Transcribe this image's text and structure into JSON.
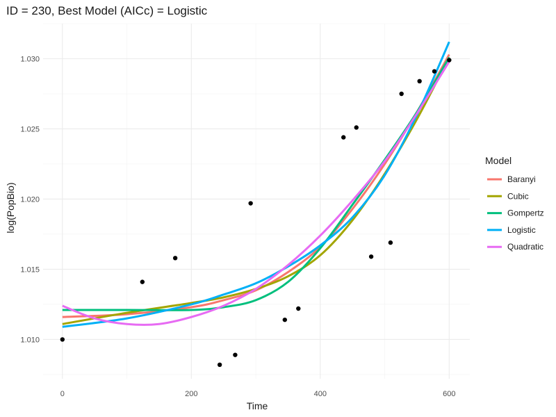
{
  "chart_data": {
    "type": "scatter",
    "title": "ID = 230, Best Model (AICc) = Logistic",
    "xlabel": "Time",
    "ylabel": "log(PopBio)",
    "xlim": [
      -30,
      632
    ],
    "ylim": [
      1.0072,
      1.0325
    ],
    "x_ticks": [
      0,
      200,
      400,
      600
    ],
    "y_ticks": [
      1.01,
      1.015,
      1.02,
      1.025,
      1.03
    ],
    "x_tick_labels": [
      "0",
      "200",
      "400",
      "600"
    ],
    "y_tick_labels": [
      "1.010",
      "1.015",
      "1.020",
      "1.025",
      "1.030"
    ],
    "grid": true,
    "legend_position": "right",
    "legend_title": "Model",
    "points": [
      {
        "x": 0,
        "y": 1.01
      },
      {
        "x": 124,
        "y": 1.0141
      },
      {
        "x": 175,
        "y": 1.0158
      },
      {
        "x": 244,
        "y": 1.0082
      },
      {
        "x": 268,
        "y": 1.0089
      },
      {
        "x": 292,
        "y": 1.0197
      },
      {
        "x": 345,
        "y": 1.0114
      },
      {
        "x": 366,
        "y": 1.0122
      },
      {
        "x": 436,
        "y": 1.0244
      },
      {
        "x": 456,
        "y": 1.0251
      },
      {
        "x": 479,
        "y": 1.0159
      },
      {
        "x": 509,
        "y": 1.0169
      },
      {
        "x": 526,
        "y": 1.0275
      },
      {
        "x": 554,
        "y": 1.0284
      },
      {
        "x": 577,
        "y": 1.0291
      },
      {
        "x": 600,
        "y": 1.0299
      }
    ],
    "series": [
      {
        "name": "Baranyi",
        "color": "#F8766D",
        "x": [
          0,
          100,
          200,
          250,
          300,
          350,
          400,
          450,
          500,
          550,
          600
        ],
        "y": [
          1.0116,
          1.0118,
          1.0123,
          1.0128,
          1.0135,
          1.0148,
          1.0166,
          1.0193,
          1.0225,
          1.0262,
          1.0303
        ]
      },
      {
        "name": "Cubic",
        "color": "#A3A500",
        "x": [
          0,
          100,
          200,
          250,
          300,
          350,
          400,
          450,
          500,
          550,
          600
        ],
        "y": [
          1.0111,
          1.0119,
          1.0126,
          1.013,
          1.0136,
          1.0145,
          1.016,
          1.0185,
          1.0218,
          1.0257,
          1.0301
        ]
      },
      {
        "name": "Gompertz",
        "color": "#00BF7D",
        "x": [
          0,
          100,
          200,
          250,
          300,
          350,
          400,
          450,
          500,
          550,
          600
        ],
        "y": [
          1.0121,
          1.0121,
          1.0121,
          1.0123,
          1.0128,
          1.0141,
          1.0165,
          1.0196,
          1.0228,
          1.0262,
          1.0301
        ]
      },
      {
        "name": "Logistic",
        "color": "#00B0F6",
        "x": [
          0,
          100,
          200,
          250,
          300,
          350,
          400,
          450,
          500,
          550,
          600
        ],
        "y": [
          1.0109,
          1.0115,
          1.0125,
          1.0132,
          1.014,
          1.0152,
          1.0167,
          1.0187,
          1.0217,
          1.026,
          1.0312
        ]
      },
      {
        "name": "Quadratic",
        "color": "#E76BF3",
        "x": [
          0,
          50,
          100,
          150,
          200,
          250,
          300,
          350,
          400,
          450,
          500,
          550,
          600
        ],
        "y": [
          1.0124,
          1.0115,
          1.0111,
          1.0111,
          1.0116,
          1.0124,
          1.0136,
          1.0153,
          1.0174,
          1.0199,
          1.0227,
          1.0261,
          1.0298
        ]
      }
    ]
  }
}
